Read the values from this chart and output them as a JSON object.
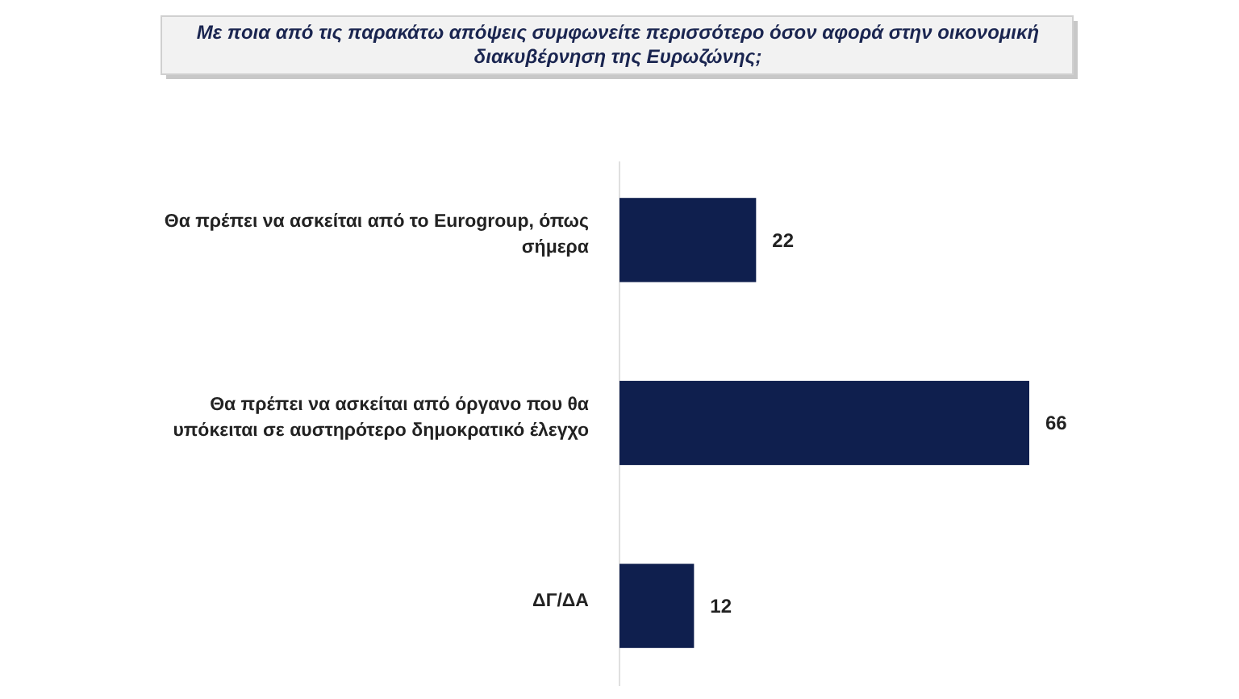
{
  "chart_data": {
    "type": "bar",
    "orientation": "horizontal",
    "title": "Με ποια από τις παρακάτω απόψεις συμφωνείτε περισσότερο όσον αφορά στην οικονομική διακυβέρνηση της Ευρωζώνης;",
    "categories": [
      "Θα πρέπει να ασκείται από το Eurogroup, όπως σήμερα",
      "Θα πρέπει να ασκείται από όργανο που θα υπόκειται σε αυστηρότερο δημοκρατικό έλεγχο",
      "ΔΓ/ΔΑ"
    ],
    "values": [
      22,
      66,
      12
    ],
    "color": "#0f1f4e",
    "data_labels": true
  }
}
